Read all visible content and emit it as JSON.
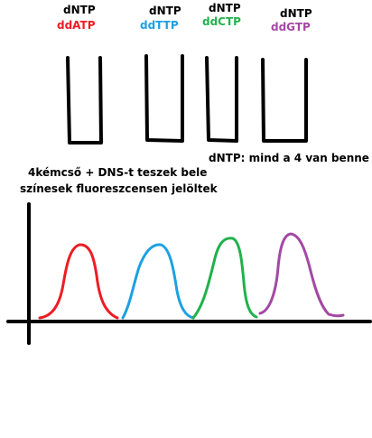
{
  "tubes": [
    {
      "top_label": "dNTP",
      "bottom_label": "ddATP",
      "color": "#ed1c24"
    },
    {
      "top_label": "dNTP",
      "bottom_label": "ddTTP",
      "color": "#1ba1e2"
    },
    {
      "top_label": "dNTP",
      "bottom_label": "ddCTP",
      "color": "#22b14c"
    },
    {
      "top_label": "dNTP",
      "bottom_label": "ddGTP",
      "color": "#a349a4"
    }
  ],
  "note": "dNTP: mind a 4 van benne",
  "description_line1": "4kémcső + DNS-t teszek bele",
  "description_line2": "színesek fluoreszcensen jelöltek",
  "colors": {
    "line": "#000000",
    "background": "#ffffff"
  }
}
